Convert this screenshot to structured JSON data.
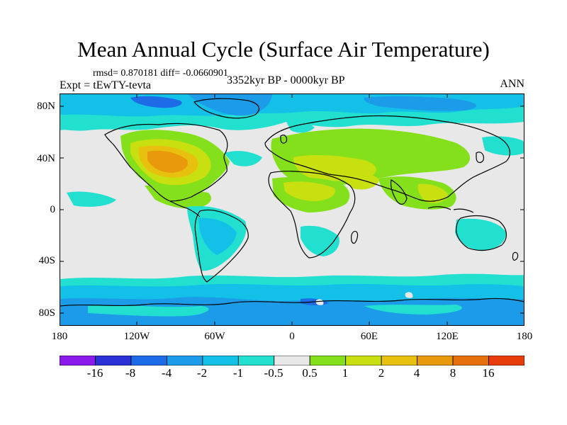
{
  "title": "Mean Annual Cycle (Surface Air Temperature)",
  "stats_line": "rmsd= 0.870181 diff= -0.0660901",
  "experiment": "Expt = tEwTY-tevta",
  "period": "3352kyr BP - 0000kyr BP",
  "season": "ANN",
  "map": {
    "lat_labels": [
      "80N",
      "40N",
      "0",
      "40S",
      "80S"
    ],
    "lon_labels": [
      "180",
      "120W",
      "60W",
      "0",
      "60E",
      "120E",
      "180"
    ]
  },
  "colorbar": {
    "colors": [
      "#8c1aeb",
      "#2a2fd6",
      "#1e6be8",
      "#1c9be8",
      "#12c0e8",
      "#22e0d0",
      "#e8e8e8",
      "#84e01a",
      "#c8e010",
      "#e8c00e",
      "#e89a0c",
      "#e8700c",
      "#e83c0c"
    ],
    "labels": [
      "-16",
      "-8",
      "-4",
      "-2",
      "-1",
      "-0.5",
      "0.5",
      "1",
      "2",
      "4",
      "8",
      "16"
    ]
  },
  "colors": {
    "neutral": "#e8e8e8",
    "cool1": "#22e0d0",
    "cool2": "#12c0e8",
    "cool3": "#1c9be8",
    "cool4": "#1e6be8",
    "cool5": "#2a2fd6",
    "warm1": "#84e01a",
    "warm2": "#c8e010",
    "warm3": "#e8c00e",
    "warm4": "#e89a0c"
  }
}
